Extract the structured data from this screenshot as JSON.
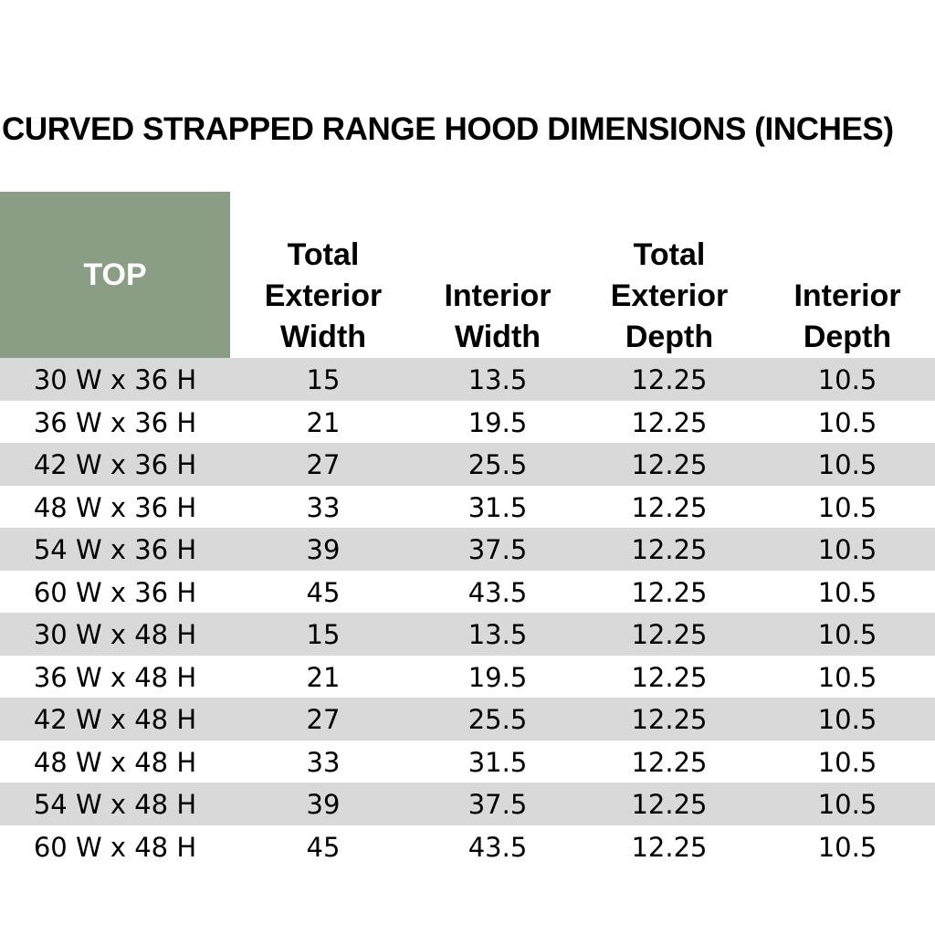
{
  "title": "CURVED STRAPPED RANGE HOOD DIMENSIONS (INCHES)",
  "table": {
    "corner_label": "TOP",
    "corner_color": "#8a9e86",
    "stripe_color": "#d9d9d9",
    "columns": [
      "Total\nExterior\nWidth",
      "Interior\nWidth",
      "Total\nExterior\nDepth",
      "Interior\nDepth"
    ],
    "rows": [
      [
        "30 W x 36 H",
        "15",
        "13.5",
        "12.25",
        "10.5"
      ],
      [
        "36 W x 36 H",
        "21",
        "19.5",
        "12.25",
        "10.5"
      ],
      [
        "42 W x 36 H",
        "27",
        "25.5",
        "12.25",
        "10.5"
      ],
      [
        "48 W x 36 H",
        "33",
        "31.5",
        "12.25",
        "10.5"
      ],
      [
        "54 W x 36 H",
        "39",
        "37.5",
        "12.25",
        "10.5"
      ],
      [
        "60 W x 36 H",
        "45",
        "43.5",
        "12.25",
        "10.5"
      ],
      [
        "30 W x 48 H",
        "15",
        "13.5",
        "12.25",
        "10.5"
      ],
      [
        "36 W x 48 H",
        "21",
        "19.5",
        "12.25",
        "10.5"
      ],
      [
        "42 W x 48 H",
        "27",
        "25.5",
        "12.25",
        "10.5"
      ],
      [
        "48 W x 48 H",
        "33",
        "31.5",
        "12.25",
        "10.5"
      ],
      [
        "54 W x 48 H",
        "39",
        "37.5",
        "12.25",
        "10.5"
      ],
      [
        "60 W x 48 H",
        "45",
        "43.5",
        "12.25",
        "10.5"
      ]
    ]
  }
}
